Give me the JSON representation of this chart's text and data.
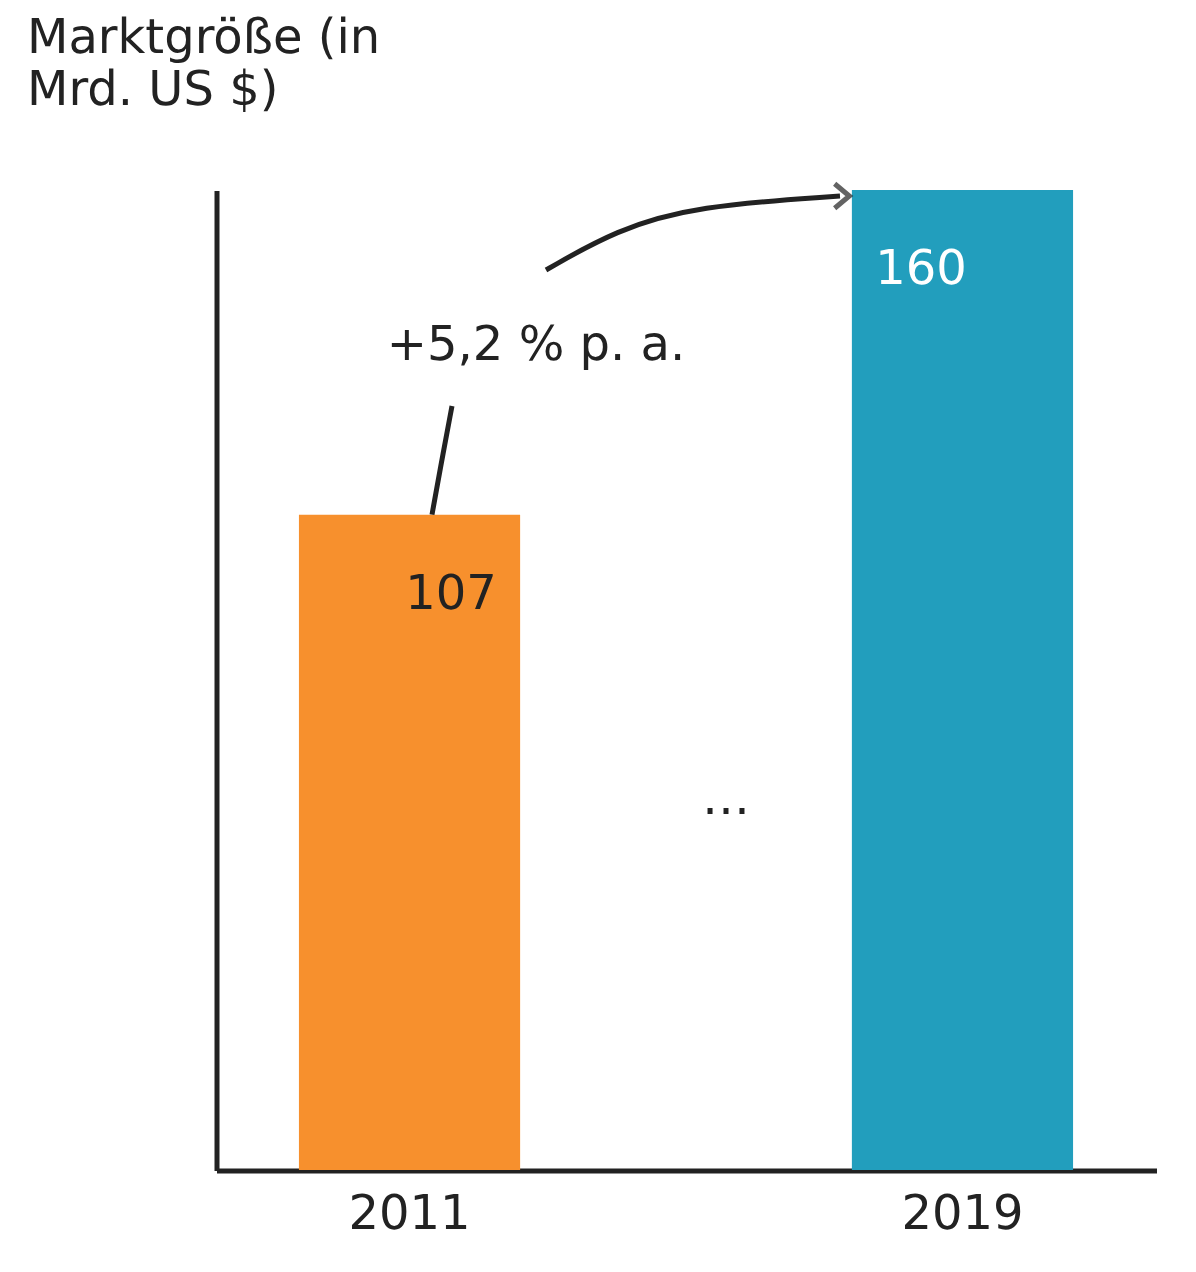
{
  "chart_data": {
    "type": "bar",
    "ylabel": "Marktgröße (in\nMrd. US $)",
    "categories": [
      "2011",
      "2019"
    ],
    "values": [
      107,
      160
    ],
    "colors": [
      "#f7902d",
      "#229ebd"
    ],
    "data_labels": true,
    "annotations": [
      "+5,2 % p. a.",
      "…"
    ]
  }
}
